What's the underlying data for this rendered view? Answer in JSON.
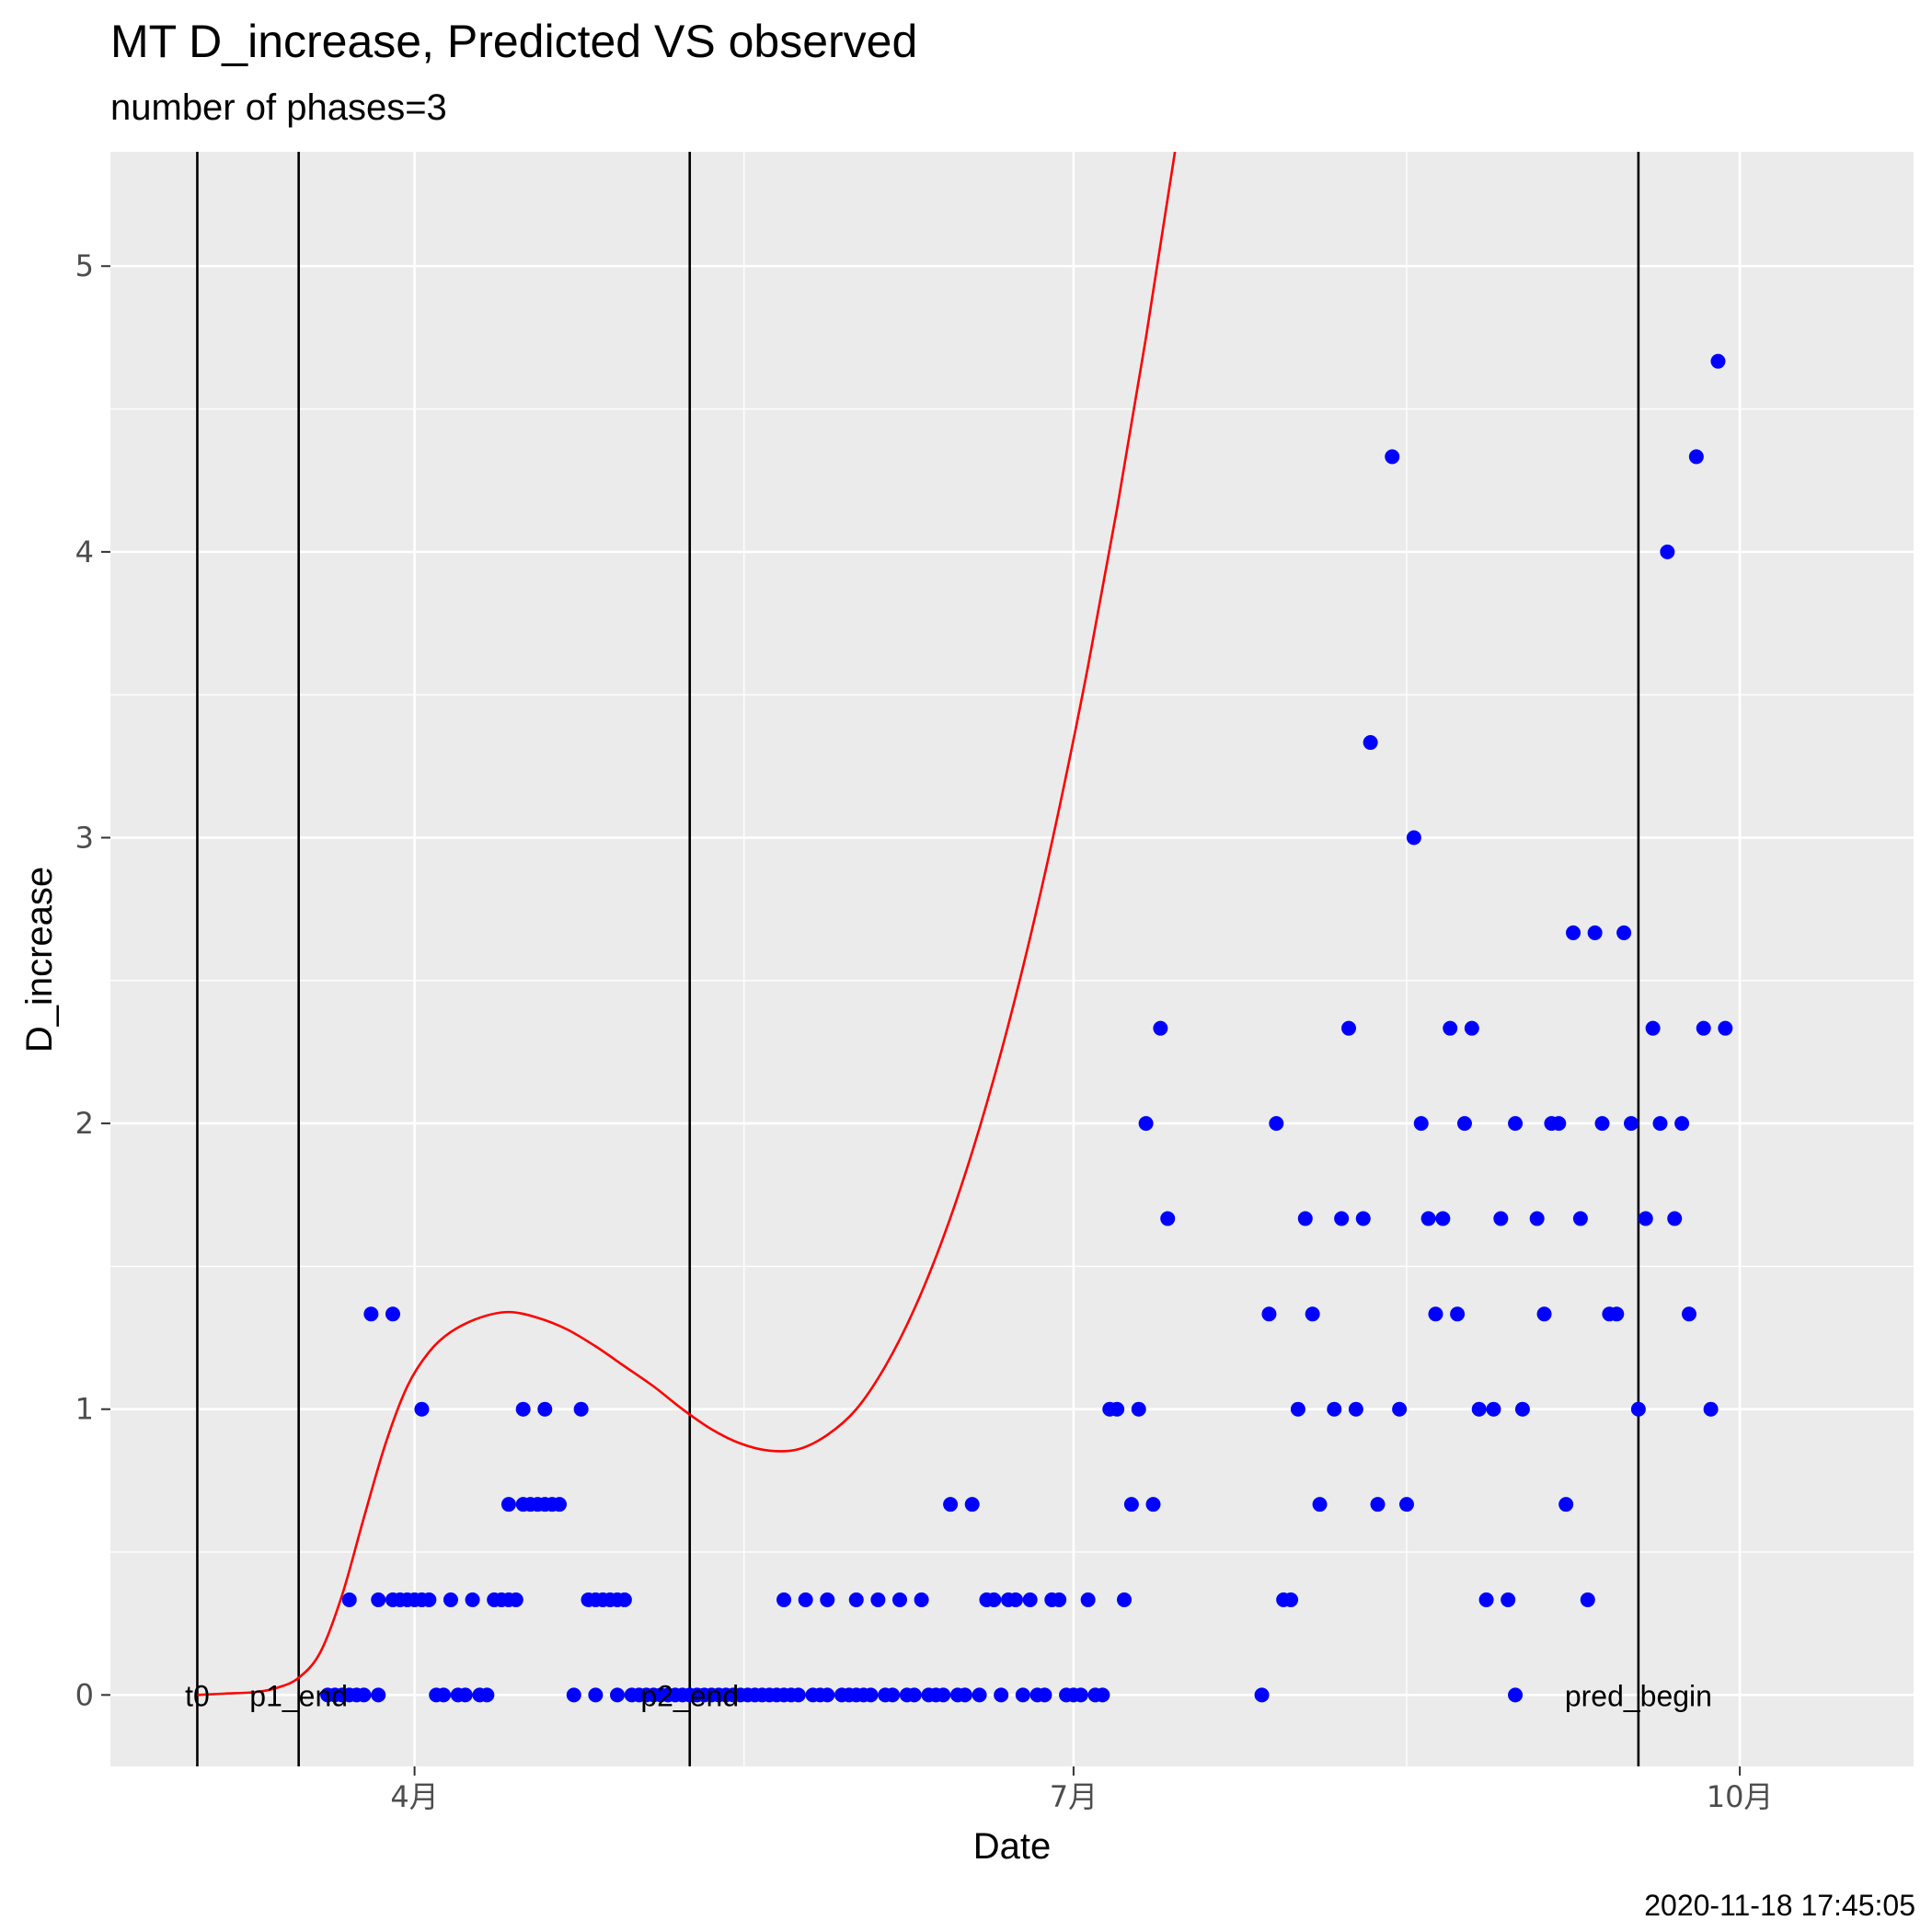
{
  "chart_data": {
    "type": "scatter",
    "title": "MT D_increase, Predicted VS observed",
    "subtitle": "number of phases=3",
    "xlabel": "Date",
    "ylabel": "D_increase",
    "caption": "2020-11-18 17:45:05",
    "xlim": [
      "2020-02-19",
      "2020-10-25"
    ],
    "ylim": [
      -0.25,
      5.4
    ],
    "grid": true,
    "x_ticks": [
      {
        "date": "2020-04-01",
        "label": "4月"
      },
      {
        "date": "2020-07-01",
        "label": "7月"
      },
      {
        "date": "2020-10-01",
        "label": "10月"
      }
    ],
    "y_ticks": [
      0,
      1,
      2,
      3,
      4,
      5
    ],
    "y_tick_labels": [
      "0",
      "1",
      "2",
      "3",
      "4",
      "5"
    ],
    "vertical_lines": [
      {
        "date": "2020-03-02",
        "label": "t0"
      },
      {
        "date": "2020-03-16",
        "label": "p1_end"
      },
      {
        "date": "2020-05-09",
        "label": "p2_end"
      },
      {
        "date": "2020-09-17",
        "label": "pred_begin"
      }
    ],
    "colors": {
      "observed": "#0000ff",
      "predicted": "#ff0000",
      "vline": "#000000",
      "panel": "#ebebeb",
      "grid": "#ffffff"
    },
    "series": [
      {
        "kind": "points",
        "points": [
          [
            "2020-03-20",
            0
          ],
          [
            "2020-03-21",
            0
          ],
          [
            "2020-03-22",
            0
          ],
          [
            "2020-03-23",
            0
          ],
          [
            "2020-03-24",
            0
          ],
          [
            "2020-03-25",
            0
          ],
          [
            "2020-03-27",
            0
          ],
          [
            "2020-03-23",
            0.333
          ],
          [
            "2020-03-27",
            0.333
          ],
          [
            "2020-03-29",
            0.333
          ],
          [
            "2020-03-30",
            0.333
          ],
          [
            "2020-03-31",
            0.333
          ],
          [
            "2020-04-01",
            0.333
          ],
          [
            "2020-04-02",
            0.333
          ],
          [
            "2020-04-03",
            0.333
          ],
          [
            "2020-04-06",
            0.333
          ],
          [
            "2020-04-09",
            0.333
          ],
          [
            "2020-04-12",
            0.333
          ],
          [
            "2020-04-13",
            0.333
          ],
          [
            "2020-04-14",
            0.333
          ],
          [
            "2020-04-15",
            0.333
          ],
          [
            "2020-03-26",
            1.333
          ],
          [
            "2020-03-29",
            1.333
          ],
          [
            "2020-04-02",
            1.0
          ],
          [
            "2020-04-04",
            0
          ],
          [
            "2020-04-05",
            0
          ],
          [
            "2020-04-07",
            0
          ],
          [
            "2020-04-08",
            0
          ],
          [
            "2020-04-10",
            0
          ],
          [
            "2020-04-11",
            0
          ],
          [
            "2020-04-14",
            0.667
          ],
          [
            "2020-04-16",
            0.667
          ],
          [
            "2020-04-17",
            0.667
          ],
          [
            "2020-04-18",
            0.667
          ],
          [
            "2020-04-19",
            0.667
          ],
          [
            "2020-04-20",
            0.667
          ],
          [
            "2020-04-21",
            0.667
          ],
          [
            "2020-04-16",
            1.0
          ],
          [
            "2020-04-19",
            1.0
          ],
          [
            "2020-04-24",
            1.0
          ],
          [
            "2020-04-23",
            0
          ],
          [
            "2020-04-26",
            0
          ],
          [
            "2020-04-29",
            0
          ],
          [
            "2020-05-01",
            0
          ],
          [
            "2020-04-25",
            0.333
          ],
          [
            "2020-04-26",
            0.333
          ],
          [
            "2020-04-27",
            0.333
          ],
          [
            "2020-04-28",
            0.333
          ],
          [
            "2020-04-29",
            0.333
          ],
          [
            "2020-04-30",
            0.333
          ],
          [
            "2020-05-02",
            0
          ],
          [
            "2020-05-03",
            0
          ],
          [
            "2020-05-04",
            0
          ],
          [
            "2020-05-05",
            0
          ],
          [
            "2020-05-06",
            0
          ],
          [
            "2020-05-07",
            0
          ],
          [
            "2020-05-08",
            0
          ],
          [
            "2020-05-09",
            0
          ],
          [
            "2020-05-10",
            0
          ],
          [
            "2020-05-11",
            0
          ],
          [
            "2020-05-12",
            0
          ],
          [
            "2020-05-13",
            0
          ],
          [
            "2020-05-14",
            0
          ],
          [
            "2020-05-15",
            0
          ],
          [
            "2020-05-16",
            0
          ],
          [
            "2020-05-17",
            0
          ],
          [
            "2020-05-18",
            0
          ],
          [
            "2020-05-19",
            0
          ],
          [
            "2020-05-20",
            0
          ],
          [
            "2020-05-21",
            0
          ],
          [
            "2020-05-22",
            0
          ],
          [
            "2020-05-23",
            0
          ],
          [
            "2020-05-24",
            0
          ],
          [
            "2020-05-26",
            0
          ],
          [
            "2020-05-27",
            0
          ],
          [
            "2020-05-28",
            0
          ],
          [
            "2020-05-30",
            0
          ],
          [
            "2020-05-31",
            0
          ],
          [
            "2020-06-01",
            0
          ],
          [
            "2020-06-02",
            0
          ],
          [
            "2020-06-03",
            0
          ],
          [
            "2020-06-05",
            0
          ],
          [
            "2020-06-06",
            0
          ],
          [
            "2020-06-08",
            0
          ],
          [
            "2020-06-09",
            0
          ],
          [
            "2020-06-11",
            0
          ],
          [
            "2020-06-12",
            0
          ],
          [
            "2020-06-13",
            0
          ],
          [
            "2020-06-15",
            0
          ],
          [
            "2020-06-16",
            0
          ],
          [
            "2020-06-18",
            0
          ],
          [
            "2020-06-21",
            0
          ],
          [
            "2020-06-24",
            0
          ],
          [
            "2020-06-26",
            0
          ],
          [
            "2020-06-27",
            0
          ],
          [
            "2020-06-30",
            0
          ],
          [
            "2020-07-01",
            0
          ],
          [
            "2020-07-02",
            0
          ],
          [
            "2020-07-04",
            0
          ],
          [
            "2020-07-05",
            0
          ],
          [
            "2020-07-27",
            0
          ],
          [
            "2020-08-31",
            0
          ],
          [
            "2020-05-22",
            0.333
          ],
          [
            "2020-05-25",
            0.333
          ],
          [
            "2020-05-28",
            0.333
          ],
          [
            "2020-06-01",
            0.333
          ],
          [
            "2020-06-04",
            0.333
          ],
          [
            "2020-06-07",
            0.333
          ],
          [
            "2020-06-10",
            0.333
          ],
          [
            "2020-06-14",
            0.667
          ],
          [
            "2020-06-17",
            0.667
          ],
          [
            "2020-06-19",
            0.333
          ],
          [
            "2020-06-20",
            0.333
          ],
          [
            "2020-06-22",
            0.333
          ],
          [
            "2020-06-23",
            0.333
          ],
          [
            "2020-06-25",
            0.333
          ],
          [
            "2020-06-28",
            0.333
          ],
          [
            "2020-06-29",
            0.333
          ],
          [
            "2020-07-03",
            0.333
          ],
          [
            "2020-07-08",
            0.333
          ],
          [
            "2020-07-31",
            0.333
          ],
          [
            "2020-07-06",
            1.0
          ],
          [
            "2020-07-07",
            1.0
          ],
          [
            "2020-07-10",
            1.0
          ],
          [
            "2020-07-09",
            0.667
          ],
          [
            "2020-07-12",
            0.667
          ],
          [
            "2020-07-11",
            2.0
          ],
          [
            "2020-07-13",
            2.333
          ],
          [
            "2020-07-14",
            1.667
          ],
          [
            "2020-07-28",
            1.333
          ],
          [
            "2020-07-29",
            2.0
          ],
          [
            "2020-07-30",
            0.333
          ],
          [
            "2020-08-01",
            1.0
          ],
          [
            "2020-08-02",
            1.667
          ],
          [
            "2020-08-03",
            1.333
          ],
          [
            "2020-08-04",
            0.667
          ],
          [
            "2020-08-06",
            1.0
          ],
          [
            "2020-08-07",
            1.667
          ],
          [
            "2020-08-08",
            2.333
          ],
          [
            "2020-08-09",
            1.0
          ],
          [
            "2020-08-10",
            1.667
          ],
          [
            "2020-08-11",
            3.333
          ],
          [
            "2020-08-12",
            0.667
          ],
          [
            "2020-08-14",
            4.333
          ],
          [
            "2020-08-15",
            1.0
          ],
          [
            "2020-08-16",
            0.667
          ],
          [
            "2020-08-17",
            3.0
          ],
          [
            "2020-08-18",
            2.0
          ],
          [
            "2020-08-19",
            1.667
          ],
          [
            "2020-08-20",
            1.333
          ],
          [
            "2020-08-21",
            1.667
          ],
          [
            "2020-08-22",
            2.333
          ],
          [
            "2020-08-23",
            1.333
          ],
          [
            "2020-08-24",
            2.0
          ],
          [
            "2020-08-25",
            2.333
          ],
          [
            "2020-08-26",
            1.0
          ],
          [
            "2020-08-27",
            0.333
          ],
          [
            "2020-08-28",
            1.0
          ],
          [
            "2020-08-29",
            1.667
          ],
          [
            "2020-08-30",
            0.333
          ],
          [
            "2020-08-31",
            2.0
          ],
          [
            "2020-09-01",
            1.0
          ],
          [
            "2020-09-03",
            1.667
          ],
          [
            "2020-09-04",
            1.333
          ],
          [
            "2020-09-05",
            2.0
          ],
          [
            "2020-09-06",
            2.0
          ],
          [
            "2020-09-07",
            0.667
          ],
          [
            "2020-09-08",
            2.667
          ],
          [
            "2020-09-09",
            1.667
          ],
          [
            "2020-09-10",
            0.333
          ],
          [
            "2020-09-11",
            2.667
          ],
          [
            "2020-09-12",
            2.0
          ],
          [
            "2020-09-13",
            1.333
          ],
          [
            "2020-09-14",
            1.333
          ],
          [
            "2020-09-15",
            2.667
          ],
          [
            "2020-09-16",
            2.0
          ],
          [
            "2020-09-17",
            1.0
          ],
          [
            "2020-09-18",
            1.667
          ],
          [
            "2020-09-19",
            2.333
          ],
          [
            "2020-09-20",
            2.0
          ],
          [
            "2020-09-21",
            4.0
          ],
          [
            "2020-09-22",
            1.667
          ],
          [
            "2020-09-23",
            2.0
          ],
          [
            "2020-09-24",
            1.333
          ],
          [
            "2020-09-25",
            4.333
          ],
          [
            "2020-09-26",
            2.333
          ],
          [
            "2020-09-27",
            1.0
          ],
          [
            "2020-09-28",
            4.667
          ],
          [
            "2020-09-29",
            2.333
          ]
        ]
      },
      {
        "kind": "line",
        "points": [
          [
            "2020-03-02",
            0
          ],
          [
            "2020-03-06",
            0.005
          ],
          [
            "2020-03-10",
            0.01
          ],
          [
            "2020-03-13",
            0.025
          ],
          [
            "2020-03-16",
            0.06
          ],
          [
            "2020-03-19",
            0.15
          ],
          [
            "2020-03-22",
            0.35
          ],
          [
            "2020-03-25",
            0.62
          ],
          [
            "2020-03-28",
            0.88
          ],
          [
            "2020-03-31",
            1.08
          ],
          [
            "2020-04-03",
            1.2
          ],
          [
            "2020-04-06",
            1.27
          ],
          [
            "2020-04-10",
            1.32
          ],
          [
            "2020-04-14",
            1.34
          ],
          [
            "2020-04-18",
            1.32
          ],
          [
            "2020-04-22",
            1.28
          ],
          [
            "2020-04-26",
            1.22
          ],
          [
            "2020-04-30",
            1.15
          ],
          [
            "2020-05-04",
            1.08
          ],
          [
            "2020-05-08",
            1.0
          ],
          [
            "2020-05-12",
            0.93
          ],
          [
            "2020-05-16",
            0.88
          ],
          [
            "2020-05-20",
            0.855
          ],
          [
            "2020-05-24",
            0.86
          ],
          [
            "2020-05-28",
            0.91
          ],
          [
            "2020-06-01",
            1.0
          ],
          [
            "2020-06-05",
            1.15
          ],
          [
            "2020-06-09",
            1.35
          ],
          [
            "2020-06-13",
            1.6
          ],
          [
            "2020-06-17",
            1.9
          ],
          [
            "2020-06-21",
            2.25
          ],
          [
            "2020-06-25",
            2.65
          ],
          [
            "2020-06-29",
            3.1
          ],
          [
            "2020-07-03",
            3.6
          ],
          [
            "2020-07-07",
            4.15
          ],
          [
            "2020-07-11",
            4.75
          ],
          [
            "2020-07-15",
            5.4
          ],
          [
            "2020-07-19",
            6.1
          ]
        ]
      }
    ]
  }
}
